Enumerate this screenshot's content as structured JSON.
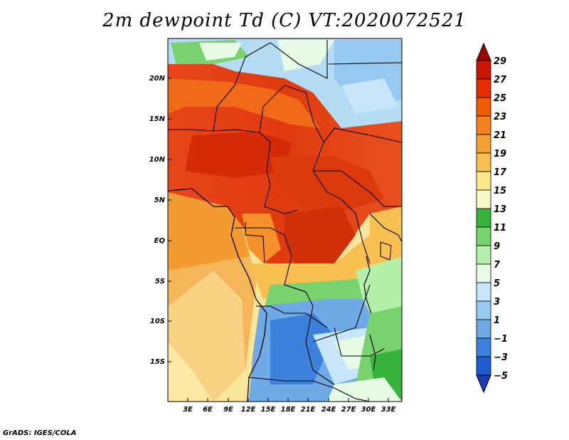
{
  "title": "2m dewpoint Td (C) VT:2020072521",
  "footer": "GrADS: IGES/COLA",
  "map": {
    "lat_labels": [
      "20N",
      "15N",
      "10N",
      "5N",
      "EQ",
      "5S",
      "10S",
      "15S"
    ],
    "lon_labels": [
      "3E",
      "6E",
      "9E",
      "12E",
      "15E",
      "18E",
      "21E",
      "24E",
      "27E",
      "30E",
      "33E"
    ]
  },
  "colorbar": {
    "levels": [
      29,
      27,
      25,
      23,
      21,
      19,
      17,
      15,
      13,
      11,
      9,
      7,
      5,
      3,
      1,
      -1,
      -3,
      -5
    ],
    "colors": [
      "#a00000",
      "#c81400",
      "#e62d00",
      "#f05a00",
      "#f5821e",
      "#f5a032",
      "#f8c050",
      "#fde88c",
      "#fafac8",
      "#36b43c",
      "#78d26e",
      "#b4f0aa",
      "#e6fae6",
      "#c8e6fa",
      "#96c8f0",
      "#6eaae6",
      "#3c82dc",
      "#1e5ad2",
      "#1e3cb4"
    ]
  }
}
